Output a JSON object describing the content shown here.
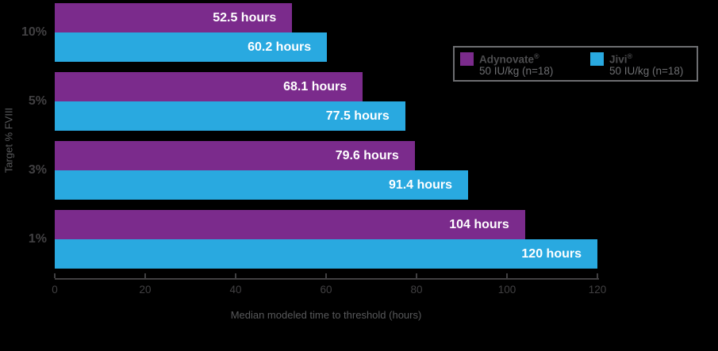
{
  "colors": {
    "background": "#000000",
    "adynovate_purple": "#7B2B8C",
    "jivi_blue": "#29A9E0",
    "axis_gray": "#414042",
    "label_gray": "#58595B",
    "legend_border_gray": "#6D6E71",
    "bar_label_white": "#FFFFFF"
  },
  "chart_data": {
    "type": "bar",
    "orientation": "horizontal",
    "title": "",
    "xlabel": "Median modeled time to threshold (hours)",
    "ylabel": "Target % FVIII",
    "categories": [
      "10%",
      "5%",
      "3%",
      "1%"
    ],
    "series": [
      {
        "name": "Adynovate",
        "mark": "®",
        "dose": "50 IU/kg (n=18)",
        "color": "#7B2B8C",
        "values": [
          52.5,
          68.1,
          79.6,
          104
        ],
        "labels": [
          "52.5 hours",
          "60.2 hours"
        ]
      },
      {
        "name": "Jivi",
        "mark": "®",
        "dose": "50 IU/kg (n=18)",
        "color": "#29A9E0",
        "values": [
          60.2,
          77.5,
          91.4,
          120
        ],
        "labels": []
      }
    ],
    "value_labels": {
      "adynovate": [
        "52.5 hours",
        "68.1 hours",
        "79.6 hours",
        "104 hours"
      ],
      "jivi": [
        "60.2 hours",
        "77.5 hours",
        "91.4 hours",
        "120 hours"
      ]
    },
    "xlim": [
      0,
      120
    ],
    "xticks": [
      0,
      20,
      40,
      60,
      80,
      100,
      120
    ],
    "grid": false,
    "legend_position": "upper right"
  },
  "legend": {
    "entries": [
      {
        "name": "Adynovate",
        "mark": "®",
        "dose": "50 IU/kg (n=18)",
        "color": "#7B2B8C"
      },
      {
        "name": "Jivi",
        "mark": "®",
        "dose": "50 IU/kg (n=18)",
        "color": "#29A9E0"
      }
    ]
  },
  "axes": {
    "x_title": "Median modeled time to threshold (hours)",
    "y_title": "Target % FVIII"
  }
}
